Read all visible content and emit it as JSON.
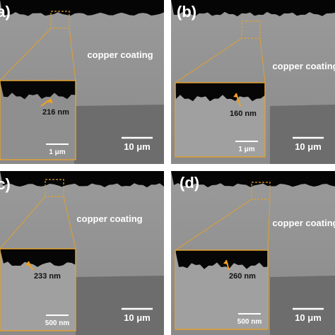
{
  "panels": [
    {
      "label": "(a)",
      "coating": "copper coating",
      "thickness": "216 nm",
      "inset_scale": "1 μm",
      "scale": "10 μm"
    },
    {
      "label": "(b)",
      "coating": "copper coating",
      "thickness": "160 nm",
      "inset_scale": "1 μm",
      "scale": "10 μm"
    },
    {
      "label": "(c)",
      "coating": "copper coating",
      "thickness": "233 nm",
      "inset_scale": "500 nm",
      "scale": "10 μm"
    },
    {
      "label": "(d)",
      "coating": "copper coating",
      "thickness": "260 nm",
      "inset_scale": "500 nm",
      "scale": "10 μm"
    }
  ]
}
